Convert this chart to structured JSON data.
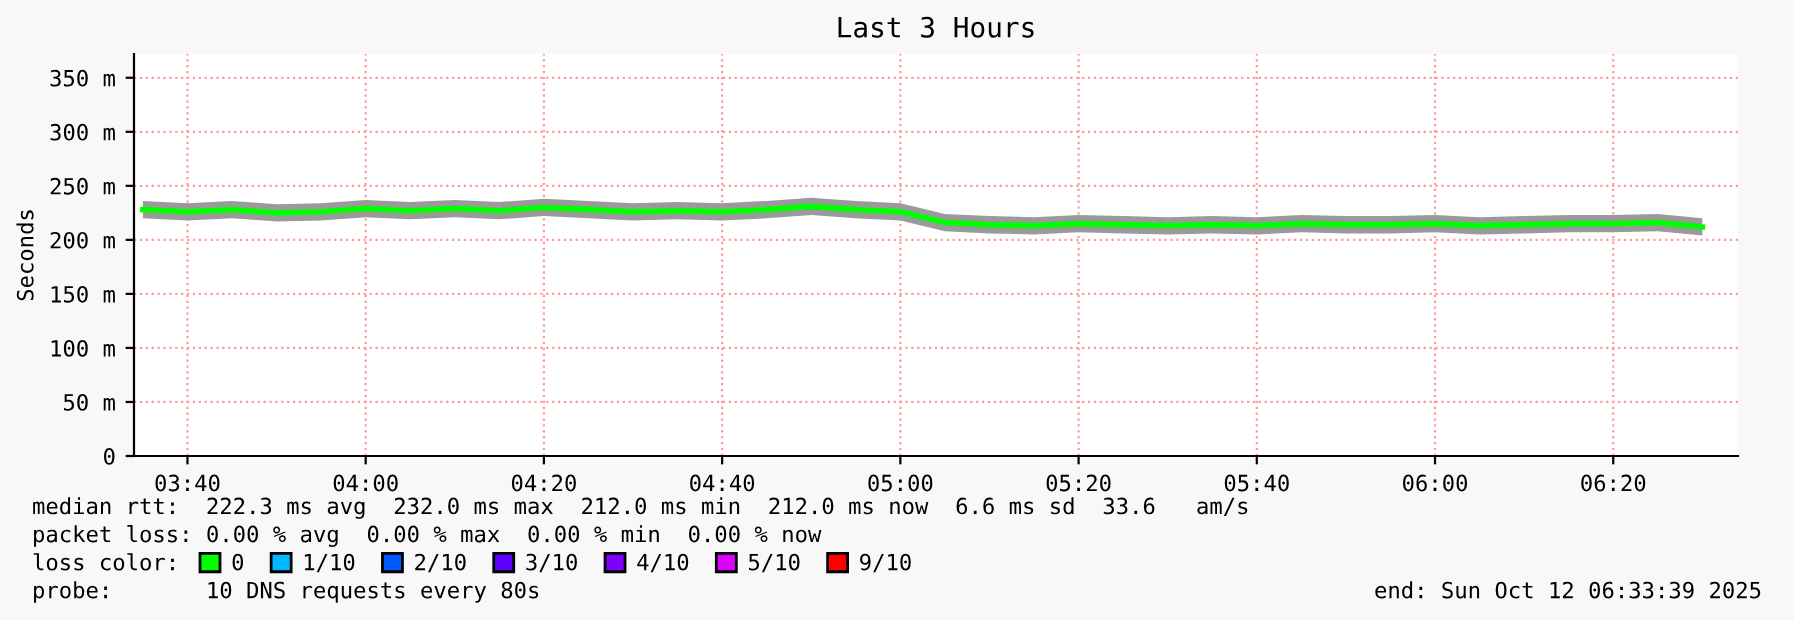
{
  "chart_data": {
    "type": "line",
    "title": "Last 3 Hours",
    "ylabel": "Seconds",
    "x": [
      "2025-10-12T03:35",
      "2025-10-12T03:40",
      "2025-10-12T03:45",
      "2025-10-12T03:50",
      "2025-10-12T03:55",
      "2025-10-12T04:00",
      "2025-10-12T04:05",
      "2025-10-12T04:10",
      "2025-10-12T04:15",
      "2025-10-12T04:20",
      "2025-10-12T04:25",
      "2025-10-12T04:30",
      "2025-10-12T04:35",
      "2025-10-12T04:40",
      "2025-10-12T04:45",
      "2025-10-12T04:50",
      "2025-10-12T04:55",
      "2025-10-12T05:00",
      "2025-10-12T05:05",
      "2025-10-12T05:10",
      "2025-10-12T05:15",
      "2025-10-12T05:20",
      "2025-10-12T05:25",
      "2025-10-12T05:30",
      "2025-10-12T05:35",
      "2025-10-12T05:40",
      "2025-10-12T05:45",
      "2025-10-12T05:50",
      "2025-10-12T05:55",
      "2025-10-12T06:00",
      "2025-10-12T06:05",
      "2025-10-12T06:10",
      "2025-10-12T06:15",
      "2025-10-12T06:20",
      "2025-10-12T06:25",
      "2025-10-12T06:30"
    ],
    "series": [
      {
        "name": "0",
        "color": "#00ff00",
        "values": [
          228,
          226,
          228,
          225,
          226,
          229,
          227,
          229,
          227,
          230,
          228,
          226,
          227,
          226,
          228,
          231,
          228,
          226,
          216,
          214,
          213,
          215,
          214,
          213,
          214,
          213,
          215,
          214,
          214,
          215,
          213,
          214,
          215,
          215,
          216,
          212
        ],
        "lower": [
          220,
          218,
          220,
          217,
          218,
          221,
          219,
          221,
          219,
          222,
          220,
          218,
          219,
          218,
          220,
          223,
          220,
          218,
          208,
          206,
          205,
          207,
          206,
          205,
          206,
          205,
          207,
          206,
          206,
          207,
          205,
          206,
          207,
          207,
          208,
          204
        ],
        "upper": [
          236,
          234,
          236,
          233,
          234,
          237,
          235,
          237,
          235,
          238,
          236,
          234,
          235,
          234,
          236,
          239,
          236,
          234,
          224,
          222,
          221,
          223,
          222,
          221,
          222,
          221,
          223,
          222,
          222,
          223,
          221,
          222,
          223,
          223,
          224,
          220
        ]
      },
      {
        "name": "1/10",
        "color": "#00b8ff",
        "values": [
          null,
          null,
          null,
          null,
          null,
          null,
          null,
          null,
          null,
          null,
          null,
          null,
          null,
          null,
          null,
          null,
          null,
          null,
          null,
          null,
          null,
          null,
          null,
          null,
          null,
          null,
          null,
          null,
          null,
          null,
          null,
          null,
          null,
          null,
          null,
          null
        ]
      },
      {
        "name": "2/10",
        "color": "#0059ff",
        "values": [
          null,
          null,
          null,
          null,
          null,
          null,
          null,
          null,
          null,
          null,
          null,
          null,
          null,
          null,
          null,
          null,
          null,
          null,
          null,
          null,
          null,
          null,
          null,
          null,
          null,
          null,
          null,
          null,
          null,
          null,
          null,
          null,
          null,
          null,
          null,
          null
        ]
      },
      {
        "name": "3/10",
        "color": "#5e00ff",
        "values": [
          null,
          null,
          null,
          null,
          null,
          null,
          null,
          null,
          null,
          null,
          null,
          null,
          null,
          null,
          null,
          null,
          null,
          null,
          null,
          null,
          null,
          null,
          null,
          null,
          null,
          null,
          null,
          null,
          null,
          null,
          null,
          null,
          null,
          null,
          null,
          null
        ]
      },
      {
        "name": "4/10",
        "color": "#7e00ff",
        "values": [
          null,
          null,
          null,
          null,
          null,
          null,
          null,
          null,
          null,
          null,
          null,
          null,
          null,
          null,
          null,
          null,
          null,
          null,
          null,
          null,
          null,
          null,
          null,
          null,
          null,
          null,
          null,
          null,
          null,
          null,
          null,
          null,
          null,
          null,
          null,
          null
        ]
      },
      {
        "name": "5/10",
        "color": "#dd00ff",
        "values": [
          null,
          null,
          null,
          null,
          null,
          null,
          null,
          null,
          null,
          null,
          null,
          null,
          null,
          null,
          null,
          null,
          null,
          null,
          null,
          null,
          null,
          null,
          null,
          null,
          null,
          null,
          null,
          null,
          null,
          null,
          null,
          null,
          null,
          null,
          null,
          null
        ]
      },
      {
        "name": "9/10",
        "color": "#ff0000",
        "values": [
          null,
          null,
          null,
          null,
          null,
          null,
          null,
          null,
          null,
          null,
          null,
          null,
          null,
          null,
          null,
          null,
          null,
          null,
          null,
          null,
          null,
          null,
          null,
          null,
          null,
          null,
          null,
          null,
          null,
          null,
          null,
          null,
          null,
          null,
          null,
          null
        ]
      }
    ],
    "legend_title": "loss color:",
    "legend": "bottom",
    "grid": true,
    "xlim": [
      "2025-10-12T03:34",
      "2025-10-12T06:34"
    ],
    "xticks": [
      {
        "value": "2025-10-12T03:40",
        "label": "03:40"
      },
      {
        "value": "2025-10-12T04:00",
        "label": "04:00"
      },
      {
        "value": "2025-10-12T04:20",
        "label": "04:20"
      },
      {
        "value": "2025-10-12T04:40",
        "label": "04:40"
      },
      {
        "value": "2025-10-12T05:00",
        "label": "05:00"
      },
      {
        "value": "2025-10-12T05:20",
        "label": "05:20"
      },
      {
        "value": "2025-10-12T05:40",
        "label": "05:40"
      },
      {
        "value": "2025-10-12T06:00",
        "label": "06:00"
      },
      {
        "value": "2025-10-12T06:20",
        "label": "06:20"
      }
    ],
    "ylim": [
      0,
      372
    ],
    "yticks": [
      0,
      {
        "value": 50,
        "label": "50 m"
      },
      {
        "value": 100,
        "label": "100 m"
      },
      {
        "value": 150,
        "label": "150 m"
      },
      {
        "value": 200,
        "label": "200 m"
      },
      {
        "value": 250,
        "label": "250 m"
      },
      {
        "value": 300,
        "label": "300 m"
      },
      {
        "value": 350,
        "label": "350 m"
      }
    ],
    "annotations": [
      "median rtt:  222.3 ms avg  232.0 ms max  212.0 ms min  212.0 ms now  6.6 ms sd  33.6   am/s",
      "packet loss: 0.00 % avg  0.00 % max  0.00 % min  0.00 % now",
      "probe:       10 DNS requests every 80s",
      "end: Sun Oct 12 06:33:39 2025"
    ]
  }
}
